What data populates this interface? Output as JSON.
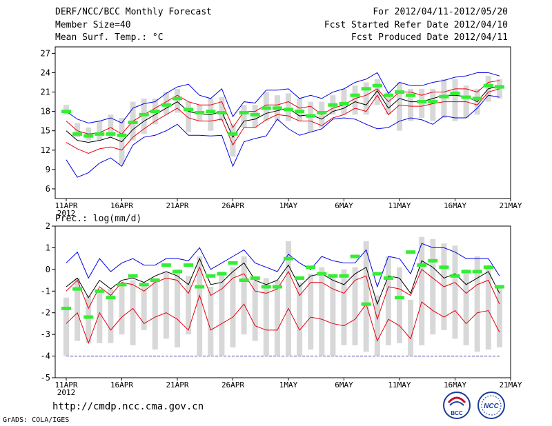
{
  "header": {
    "title": "DERF/NCC/BCC Monthly Forecast",
    "member_size": "Member Size=40",
    "variable": "Mean Surf. Temp.: °C",
    "forecast_period": "For 2012/04/11-2012/05/20",
    "started_refer": "Fcst Started Refer Date 2012/04/10",
    "produced": "Fcst Produced Date 2012/04/11"
  },
  "footer": {
    "url": "http://cmdp.ncc.cma.gov.cn",
    "grads": "GrADS: COLA/IGES",
    "logo_bcc": "BCC",
    "logo_ncc": "NCC"
  },
  "colors": {
    "outer": "#0000e6",
    "spread": "#e6000f",
    "mean": "#000000",
    "obs_bar": "#d8d8d8",
    "marker": "#33ee33"
  },
  "chart_data": [
    {
      "type": "line",
      "name": "temperature",
      "ylabel": "",
      "ylim": [
        4.5,
        28
      ],
      "yticks": [
        6,
        9,
        12,
        15,
        18,
        21,
        24,
        27
      ],
      "xlim": [
        0,
        40
      ],
      "xticks": [
        {
          "day": 0,
          "label": "11APR",
          "sub": "2012"
        },
        {
          "day": 5,
          "label": "16APR"
        },
        {
          "day": 10,
          "label": "21APR"
        },
        {
          "day": 15,
          "label": "26APR"
        },
        {
          "day": 20,
          "label": "1MAY"
        },
        {
          "day": 25,
          "label": "6MAY"
        },
        {
          "day": 30,
          "label": "11MAY"
        },
        {
          "day": 35,
          "label": "16MAY"
        },
        {
          "day": 40,
          "label": "21MAY"
        }
      ],
      "x": [
        0,
        1,
        2,
        3,
        4,
        5,
        6,
        7,
        8,
        9,
        10,
        11,
        12,
        13,
        14,
        15,
        16,
        17,
        18,
        19,
        20,
        21,
        22,
        23,
        24,
        25,
        26,
        27,
        28,
        29,
        30,
        31,
        32,
        33,
        34,
        35,
        36,
        37,
        38,
        39
      ],
      "series": [
        {
          "name": "max",
          "role": "outer",
          "values": [
            18,
            16.8,
            16.2,
            16.5,
            17,
            16.2,
            18.5,
            19.2,
            19.5,
            20.8,
            21.8,
            22.2,
            20.5,
            20,
            21.5,
            17.2,
            19.5,
            19.3,
            21.3,
            21.3,
            21.5,
            20,
            20.5,
            20,
            21,
            21.5,
            22.5,
            23,
            24,
            20.8,
            22.5,
            22,
            22,
            22.5,
            22.8,
            23.3,
            23.5,
            24,
            24,
            23.5
          ]
        },
        {
          "name": "upper",
          "role": "spread",
          "values": [
            16.5,
            15,
            14.5,
            14.7,
            15.5,
            14.5,
            16.5,
            17.5,
            18.5,
            19.5,
            20.5,
            19.5,
            19,
            19,
            19.5,
            15.5,
            18,
            18,
            19,
            19,
            19.5,
            18.5,
            18.8,
            17.5,
            18.5,
            19,
            20,
            20.5,
            21.5,
            19.5,
            21,
            21,
            20.5,
            21,
            21,
            21.5,
            21.5,
            21,
            22.5,
            22.8
          ]
        },
        {
          "name": "mean",
          "role": "mean",
          "values": [
            15,
            13.5,
            13.2,
            13.5,
            14,
            13.3,
            15.2,
            16.5,
            17.5,
            18.5,
            19.5,
            18,
            17.6,
            17.5,
            18,
            14,
            16.5,
            16.8,
            17.7,
            18.1,
            18.5,
            17.3,
            17.5,
            16.8,
            18,
            18.5,
            19.5,
            19,
            21.2,
            18.5,
            20,
            19.5,
            19.5,
            20,
            20.5,
            20.5,
            20.3,
            19.5,
            21.5,
            22
          ]
        },
        {
          "name": "lower",
          "role": "spread",
          "values": [
            13.2,
            12.2,
            11.5,
            12.2,
            12.5,
            12,
            14,
            15.3,
            16.5,
            17.5,
            18.5,
            17,
            16.5,
            16.5,
            16.8,
            12.8,
            15.5,
            15.5,
            16.7,
            17.5,
            17.3,
            16.5,
            16.5,
            15.8,
            17,
            17.5,
            18.5,
            18,
            20.5,
            17.5,
            19,
            18.8,
            18.8,
            19.2,
            19.5,
            19.5,
            19.5,
            19,
            21,
            21.5
          ]
        },
        {
          "name": "min",
          "role": "outer",
          "values": [
            10.5,
            7.8,
            8.5,
            10,
            10.8,
            9.5,
            12.8,
            14,
            14.3,
            15,
            16,
            14.3,
            14.3,
            14.2,
            14.3,
            9.5,
            13.3,
            13.8,
            14.2,
            16.8,
            15.3,
            14.3,
            14.8,
            15.3,
            16.8,
            17,
            16.8,
            16,
            15.3,
            15.5,
            16.5,
            17,
            16.7,
            16,
            17.3,
            17,
            17,
            18.5,
            20.5,
            20.2
          ]
        }
      ],
      "obs_range": [
        [
          17.5,
          19
        ],
        [
          14,
          16.2
        ],
        [
          13.5,
          15.5
        ],
        [
          13.5,
          16.5
        ],
        [
          14,
          17.5
        ],
        [
          9.8,
          17
        ],
        [
          13.5,
          19.5
        ],
        [
          14.5,
          20
        ],
        [
          16,
          20
        ],
        [
          17.5,
          21
        ],
        [
          17.8,
          21.5
        ],
        [
          14.8,
          19.5
        ],
        [
          16.5,
          19
        ],
        [
          15,
          20
        ],
        [
          16.5,
          20.2
        ],
        [
          11,
          16
        ],
        [
          15.5,
          19
        ],
        [
          15.5,
          19
        ],
        [
          16.5,
          21
        ],
        [
          16.5,
          20.5
        ],
        [
          16.5,
          20.8
        ],
        [
          16.5,
          20
        ],
        [
          14.8,
          19.5
        ],
        [
          15.5,
          19.5
        ],
        [
          17.5,
          20.5
        ],
        [
          17.5,
          21.5
        ],
        [
          17.5,
          22
        ],
        [
          17.5,
          22.5
        ],
        [
          19,
          23
        ],
        [
          17.5,
          21
        ],
        [
          15,
          22.5
        ],
        [
          16.5,
          21.5
        ],
        [
          17,
          21.5
        ],
        [
          16.5,
          21.5
        ],
        [
          17,
          23
        ],
        [
          16.5,
          23
        ],
        [
          17,
          22
        ],
        [
          17.5,
          21.5
        ],
        [
          19.5,
          23.5
        ],
        [
          20,
          23
        ]
      ],
      "markers": [
        18,
        14.5,
        14.2,
        14.5,
        14.5,
        14.3,
        16.3,
        17.5,
        18,
        19,
        20,
        18.3,
        17.8,
        18,
        17.8,
        14.5,
        17.8,
        17.5,
        18.5,
        18.5,
        18.3,
        18,
        17.3,
        17.8,
        19,
        19.2,
        20.5,
        21.5,
        22,
        20.5,
        21,
        20.5,
        19.5,
        19.5,
        20.3,
        20.8,
        20.2,
        20,
        22,
        21.8
      ]
    },
    {
      "type": "line",
      "name": "precipitation",
      "ylabel": "Prec.: log(mm/d)",
      "ylim": [
        -5,
        2
      ],
      "yticks": [
        -5,
        -4,
        -3,
        -2,
        -1,
        0,
        1,
        2
      ],
      "xlim": [
        0,
        40
      ],
      "xticks": [
        {
          "day": 0,
          "label": "11APR",
          "sub": "2012"
        },
        {
          "day": 5,
          "label": "16APR"
        },
        {
          "day": 10,
          "label": "21APR"
        },
        {
          "day": 15,
          "label": "26APR"
        },
        {
          "day": 20,
          "label": "1MAY"
        },
        {
          "day": 25,
          "label": "6MAY"
        },
        {
          "day": 30,
          "label": "11MAY"
        },
        {
          "day": 35,
          "label": "16MAY"
        },
        {
          "day": 40,
          "label": "21MAY"
        }
      ],
      "x": [
        0,
        1,
        2,
        3,
        4,
        5,
        6,
        7,
        8,
        9,
        10,
        11,
        12,
        13,
        14,
        15,
        16,
        17,
        18,
        19,
        20,
        21,
        22,
        23,
        24,
        25,
        26,
        27,
        28,
        29,
        30,
        31,
        32,
        33,
        34,
        35,
        36,
        37,
        38,
        39
      ],
      "series": [
        {
          "name": "max",
          "role": "outer",
          "values": [
            0.3,
            0.8,
            -0.4,
            0.5,
            -0.1,
            0.3,
            0.5,
            0.2,
            0.2,
            0.5,
            0.5,
            0.4,
            1,
            0,
            0.3,
            0.6,
            0.9,
            0.3,
            0.1,
            -0.1,
            0.7,
            0.3,
            0,
            0.6,
            0.4,
            0.3,
            0.3,
            0.9,
            -0.8,
            0.6,
            0.5,
            -0.2,
            1.2,
            1,
            1,
            0.8,
            0.5,
            0.5,
            0.5,
            -0.3
          ]
        },
        {
          "name": "upper",
          "role": "spread",
          "values": [
            -1,
            -0.5,
            -1.8,
            -0.8,
            -1.2,
            -0.6,
            -0.7,
            -1,
            -0.6,
            -0.4,
            -0.5,
            -1.1,
            0.1,
            -1.2,
            -0.9,
            -0.4,
            -0.2,
            -1,
            -1.1,
            -0.9,
            -0.1,
            -1.2,
            -0.6,
            -0.6,
            -0.9,
            -1.1,
            -0.5,
            -0.3,
            -2.3,
            -0.8,
            -0.9,
            -1.2,
            0,
            -0.4,
            -0.8,
            -0.6,
            -1.1,
            -0.7,
            -0.5,
            -1.6
          ]
        },
        {
          "name": "mean",
          "role": "mean",
          "values": [
            -0.8,
            -0.4,
            -1.3,
            -0.5,
            -0.9,
            -0.5,
            -0.4,
            -0.6,
            -0.3,
            -0.1,
            -0.3,
            -0.7,
            0.5,
            -0.7,
            -0.6,
            -0.1,
            0.3,
            -0.5,
            -0.7,
            -0.5,
            0.2,
            -0.8,
            -0.3,
            -0.2,
            -0.5,
            -0.7,
            -0.2,
            0.1,
            -1.6,
            -0.3,
            -0.4,
            -1.1,
            0.4,
            0.1,
            -0.4,
            -0.2,
            -0.7,
            -0.4,
            -0.1,
            -1.1
          ]
        },
        {
          "name": "lower",
          "role": "spread",
          "values": [
            -2.5,
            -2,
            -3.4,
            -2,
            -2.8,
            -2.2,
            -1.8,
            -2.5,
            -2.2,
            -2,
            -2.3,
            -2.8,
            -1.2,
            -2.8,
            -2.5,
            -2.2,
            -1.6,
            -2.6,
            -2.8,
            -2.8,
            -1.8,
            -2.8,
            -2.2,
            -2.3,
            -2.5,
            -2.6,
            -2.3,
            -1.6,
            -3.3,
            -2.3,
            -2.6,
            -3.2,
            -1.5,
            -1.9,
            -2.2,
            -1.9,
            -2.5,
            -2,
            -1.9,
            -2.9
          ]
        },
        {
          "name": "min",
          "role": "outer",
          "values": [
            -4,
            -4,
            -4,
            -4,
            -4,
            -4,
            -4,
            -4,
            -4,
            -4,
            -4,
            -4,
            -4,
            -4,
            -4,
            -4,
            -4,
            -4,
            -4,
            -4,
            -4,
            -4,
            -4,
            -4,
            -4,
            -4,
            -4,
            -4,
            -4,
            -4,
            -4,
            -4,
            -4,
            -4,
            -4,
            -4,
            -4,
            -4,
            -4,
            -4
          ]
        }
      ],
      "obs_range": [
        [
          -4,
          -1.3
        ],
        [
          -3.3,
          -0.4
        ],
        [
          -3.4,
          -1.2
        ],
        [
          -3.4,
          -1
        ],
        [
          -3.4,
          -0.9
        ],
        [
          -3,
          -0.7
        ],
        [
          -3.5,
          -0.5
        ],
        [
          -2.8,
          -0.7
        ],
        [
          -3.7,
          -0.4
        ],
        [
          -3.2,
          -0.1
        ],
        [
          -3.6,
          0
        ],
        [
          -3,
          -0.3
        ],
        [
          -4,
          0.6
        ],
        [
          -4,
          -0.8
        ],
        [
          -4,
          -0.1
        ],
        [
          -3.6,
          0.1
        ],
        [
          -3,
          0.6
        ],
        [
          -3.3,
          -0.5
        ],
        [
          -4,
          -0.4
        ],
        [
          -4,
          -0.5
        ],
        [
          -4,
          1.3
        ],
        [
          -4,
          -0.6
        ],
        [
          -3.7,
          -0.2
        ],
        [
          -4,
          0.1
        ],
        [
          -4,
          -0.3
        ],
        [
          -3.5,
          0
        ],
        [
          -3.5,
          0.1
        ],
        [
          -3.8,
          1.3
        ],
        [
          -4,
          -1.2
        ],
        [
          -3.5,
          0.6
        ],
        [
          -3.4,
          0.1
        ],
        [
          -4,
          -1.4
        ],
        [
          -3.5,
          1.5
        ],
        [
          -3,
          1.4
        ],
        [
          -2.8,
          1.2
        ],
        [
          -3.2,
          1.1
        ],
        [
          -3.5,
          0
        ],
        [
          -3.8,
          0.6
        ],
        [
          -3.7,
          0.2
        ],
        [
          -3.6,
          -0.8
        ]
      ],
      "markers": [
        -1.8,
        -0.9,
        -2.2,
        -1,
        -1.3,
        -0.7,
        -0.3,
        -0.7,
        -0.5,
        0.2,
        -0.1,
        0.2,
        -0.8,
        -0.3,
        -0.2,
        0.3,
        -0.5,
        -0.4,
        -0.8,
        -0.8,
        0.5,
        -0.4,
        0.1,
        -0.2,
        -0.3,
        -0.3,
        0.6,
        -1.6,
        -0.2,
        -0.4,
        -1.3,
        0.8,
        0.2,
        0.4,
        0.1,
        -0.3,
        -0.1,
        -0.1,
        0.1,
        -0.8
      ]
    }
  ]
}
